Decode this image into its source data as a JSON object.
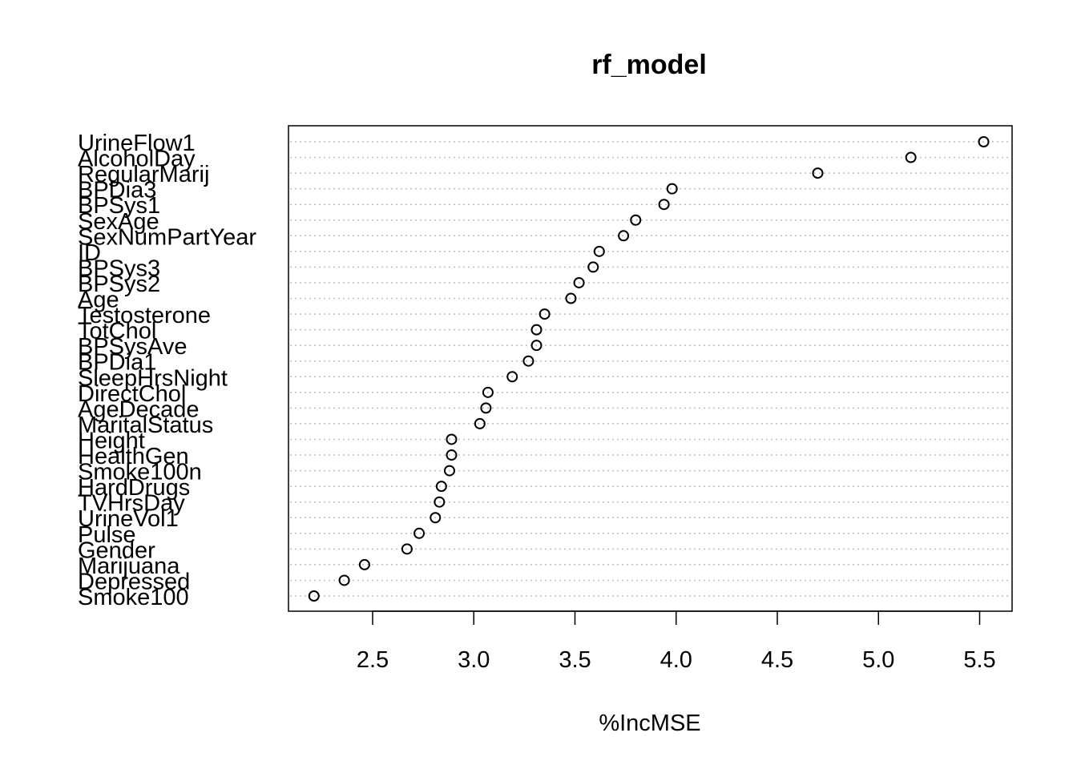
{
  "chart_data": {
    "type": "scatter",
    "title": "rf_model",
    "xlabel": "%IncMSE",
    "ylabel": "",
    "xlim": [
      2.2,
      5.55
    ],
    "xticks": [
      2.5,
      3.0,
      3.5,
      4.0,
      4.5,
      5.0,
      5.5
    ],
    "xtick_labels": [
      "2.5",
      "3.0",
      "3.5",
      "4.0",
      "4.5",
      "5.0",
      "5.5"
    ],
    "grid": "horizontal dotted",
    "categories": [
      "UrineFlow1",
      "AlcoholDay",
      "RegularMarij",
      "BPDia3",
      "BPSys1",
      "SexAge",
      "SexNumPartYear",
      "ID",
      "BPSys3",
      "BPSys2",
      "Age",
      "Testosterone",
      "TotChol",
      "BPSysAve",
      "BPDia1",
      "SleepHrsNight",
      "DirectChol",
      "AgeDecade",
      "MaritalStatus",
      "Height",
      "HealthGen",
      "Smoke100n",
      "HardDrugs",
      "TVHrsDay",
      "UrineVol1",
      "Pulse",
      "Gender",
      "Marijuana",
      "Depressed",
      "Smoke100"
    ],
    "values": [
      5.52,
      5.16,
      4.7,
      3.98,
      3.94,
      3.8,
      3.74,
      3.62,
      3.59,
      3.52,
      3.48,
      3.35,
      3.31,
      3.31,
      3.27,
      3.19,
      3.07,
      3.06,
      3.03,
      2.89,
      2.89,
      2.88,
      2.84,
      2.83,
      2.81,
      2.73,
      2.67,
      2.46,
      2.36,
      2.21
    ]
  },
  "colors": {
    "points": "#000000",
    "grid": "#bebebe",
    "frame": "#000000"
  }
}
